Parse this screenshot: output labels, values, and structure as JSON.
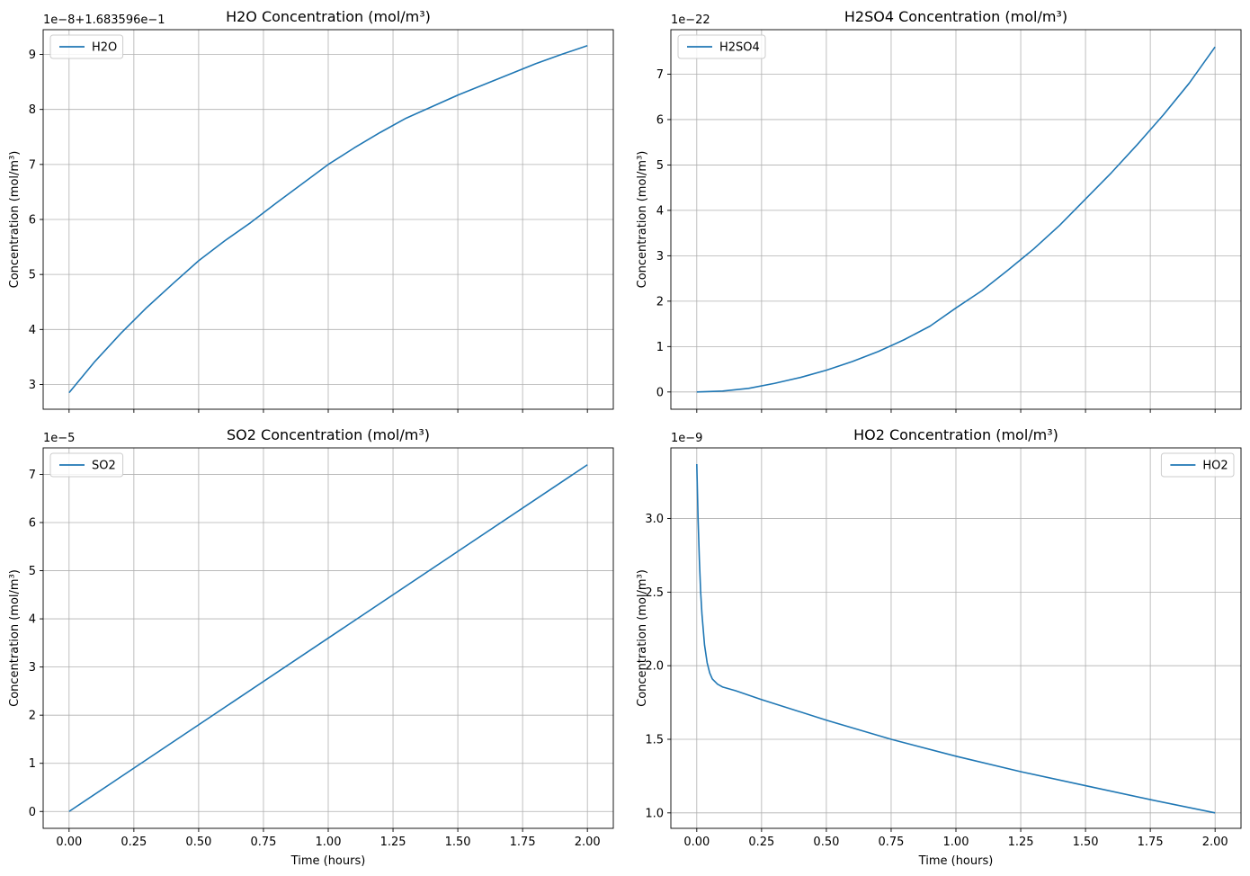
{
  "chart_data": [
    {
      "type": "line",
      "title": "H2O Concentration (mol/m³)",
      "xlabel": "",
      "ylabel": "Concentration (mol/m³)",
      "offset_text": "1e−8+1.683596e−1",
      "xlim": [
        -0.1,
        2.1
      ],
      "ylim": [
        2.55,
        9.45
      ],
      "xticks": [
        0,
        0.25,
        0.5,
        0.75,
        1.0,
        1.25,
        1.5,
        1.75,
        2.0
      ],
      "xtick_labels": [],
      "yticks": [
        3,
        4,
        5,
        6,
        7,
        8,
        9
      ],
      "ytick_labels": [
        "3",
        "4",
        "5",
        "6",
        "7",
        "8",
        "9"
      ],
      "grid": true,
      "legend": "upper-left",
      "series": [
        {
          "name": "H2O",
          "color": "#1f77b4",
          "x": [
            0,
            0.1,
            0.2,
            0.3,
            0.4,
            0.5,
            0.6,
            0.7,
            0.8,
            0.9,
            1.0,
            1.1,
            1.2,
            1.3,
            1.4,
            1.5,
            1.6,
            1.7,
            1.8,
            1.9,
            2.0
          ],
          "y": [
            2.85,
            3.42,
            3.93,
            4.4,
            4.83,
            5.25,
            5.61,
            5.94,
            6.3,
            6.65,
            7.0,
            7.3,
            7.58,
            7.84,
            8.05,
            8.26,
            8.45,
            8.64,
            8.83,
            9.0,
            9.16
          ]
        }
      ]
    },
    {
      "type": "line",
      "title": "H2SO4 Concentration (mol/m³)",
      "xlabel": "",
      "ylabel": "Concentration (mol/m³)",
      "offset_text": "1e−22",
      "xlim": [
        -0.1,
        2.1
      ],
      "ylim": [
        -0.38,
        7.98
      ],
      "xticks": [
        0,
        0.25,
        0.5,
        0.75,
        1.0,
        1.25,
        1.5,
        1.75,
        2.0
      ],
      "xtick_labels": [],
      "yticks": [
        0,
        1,
        2,
        3,
        4,
        5,
        6,
        7
      ],
      "ytick_labels": [
        "0",
        "1",
        "2",
        "3",
        "4",
        "5",
        "6",
        "7"
      ],
      "grid": true,
      "legend": "upper-left",
      "series": [
        {
          "name": "H2SO4",
          "color": "#1f77b4",
          "x": [
            0,
            0.1,
            0.2,
            0.3,
            0.4,
            0.5,
            0.6,
            0.7,
            0.8,
            0.9,
            1.0,
            1.1,
            1.2,
            1.3,
            1.4,
            1.5,
            1.6,
            1.7,
            1.8,
            1.9,
            2.0
          ],
          "y": [
            0.0,
            0.02,
            0.08,
            0.19,
            0.32,
            0.48,
            0.67,
            0.89,
            1.15,
            1.45,
            1.85,
            2.23,
            2.68,
            3.15,
            3.67,
            4.25,
            4.83,
            5.45,
            6.1,
            6.8,
            7.6
          ]
        }
      ]
    },
    {
      "type": "line",
      "title": "SO2 Concentration (mol/m³)",
      "xlabel": "Time (hours)",
      "ylabel": "Concentration (mol/m³)",
      "offset_text": "1e−5",
      "xlim": [
        -0.1,
        2.1
      ],
      "ylim": [
        -0.35,
        7.55
      ],
      "xticks": [
        0,
        0.25,
        0.5,
        0.75,
        1.0,
        1.25,
        1.5,
        1.75,
        2.0
      ],
      "xtick_labels": [
        "0.00",
        "0.25",
        "0.50",
        "0.75",
        "1.00",
        "1.25",
        "1.50",
        "1.75",
        "2.00"
      ],
      "yticks": [
        0,
        1,
        2,
        3,
        4,
        5,
        6,
        7
      ],
      "ytick_labels": [
        "0",
        "1",
        "2",
        "3",
        "4",
        "5",
        "6",
        "7"
      ],
      "grid": true,
      "legend": "upper-left",
      "series": [
        {
          "name": "SO2",
          "color": "#1f77b4",
          "x": [
            0,
            2.0
          ],
          "y": [
            0.0,
            7.2
          ]
        }
      ]
    },
    {
      "type": "line",
      "title": "HO2 Concentration (mol/m³)",
      "xlabel": "Time (hours)",
      "ylabel": "Concentration (mol/m³)",
      "offset_text": "1e−9",
      "xlim": [
        -0.1,
        2.1
      ],
      "ylim": [
        0.895,
        3.48
      ],
      "xticks": [
        0,
        0.25,
        0.5,
        0.75,
        1.0,
        1.25,
        1.5,
        1.75,
        2.0
      ],
      "xtick_labels": [
        "0.00",
        "0.25",
        "0.50",
        "0.75",
        "1.00",
        "1.25",
        "1.50",
        "1.75",
        "2.00"
      ],
      "yticks": [
        1.0,
        1.5,
        2.0,
        2.5,
        3.0
      ],
      "ytick_labels": [
        "1.0",
        "1.5",
        "2.0",
        "2.5",
        "3.0"
      ],
      "grid": true,
      "legend": "upper-right",
      "series": [
        {
          "name": "HO2",
          "color": "#1f77b4",
          "x": [
            0,
            0.005,
            0.01,
            0.015,
            0.02,
            0.03,
            0.04,
            0.05,
            0.06,
            0.08,
            0.1,
            0.15,
            0.25,
            0.5,
            0.75,
            1.0,
            1.25,
            1.5,
            1.75,
            2.0
          ],
          "y": [
            3.37,
            3.0,
            2.72,
            2.5,
            2.35,
            2.14,
            2.02,
            1.95,
            1.91,
            1.875,
            1.855,
            1.83,
            1.77,
            1.63,
            1.5,
            1.385,
            1.28,
            1.185,
            1.09,
            1.0
          ]
        }
      ]
    }
  ]
}
